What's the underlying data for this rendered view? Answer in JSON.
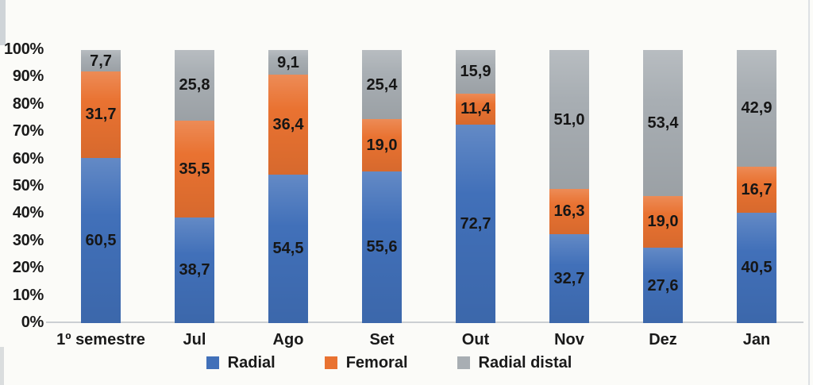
{
  "figure": {
    "background_color": "#FBFBF8",
    "axis_line_color": "#CBCFD2"
  },
  "chart_data": {
    "type": "bar",
    "variant": "100%-stacked-column",
    "title": "",
    "xlabel": "",
    "ylabel": "",
    "ylim": [
      0,
      100
    ],
    "grid": false,
    "legend_position": "bottom",
    "yticks": [
      "0%",
      "10%",
      "20%",
      "30%",
      "40%",
      "50%",
      "60%",
      "70%",
      "80%",
      "90%",
      "100%"
    ],
    "categories": [
      "1º semestre",
      "Jul",
      "Ago",
      "Set",
      "Out",
      "Nov",
      "Dez",
      "Jan"
    ],
    "series": [
      {
        "name": "Radial",
        "color": "#4170B9",
        "values": [
          60.5,
          38.7,
          54.5,
          55.6,
          72.7,
          32.7,
          27.6,
          40.5
        ],
        "labels": [
          "60,5",
          "38,7",
          "54,5",
          "55,6",
          "72,7",
          "32,7",
          "27,6",
          "40,5"
        ]
      },
      {
        "name": "Femoral",
        "color": "#E97231",
        "values": [
          31.7,
          35.5,
          36.4,
          19.0,
          11.4,
          16.3,
          19.0,
          16.7
        ],
        "labels": [
          "31,7",
          "35,5",
          "36,4",
          "19,0",
          "11,4",
          "16,3",
          "19,0",
          "16,7"
        ]
      },
      {
        "name": "Radial distal",
        "color": "#A8AEB3",
        "values": [
          7.7,
          25.8,
          9.1,
          25.4,
          15.9,
          51.0,
          53.4,
          42.9
        ],
        "labels": [
          "7,7",
          "25,8",
          "9,1",
          "25,4",
          "15,9",
          "51,0",
          "53,4",
          "42,9"
        ]
      }
    ]
  }
}
